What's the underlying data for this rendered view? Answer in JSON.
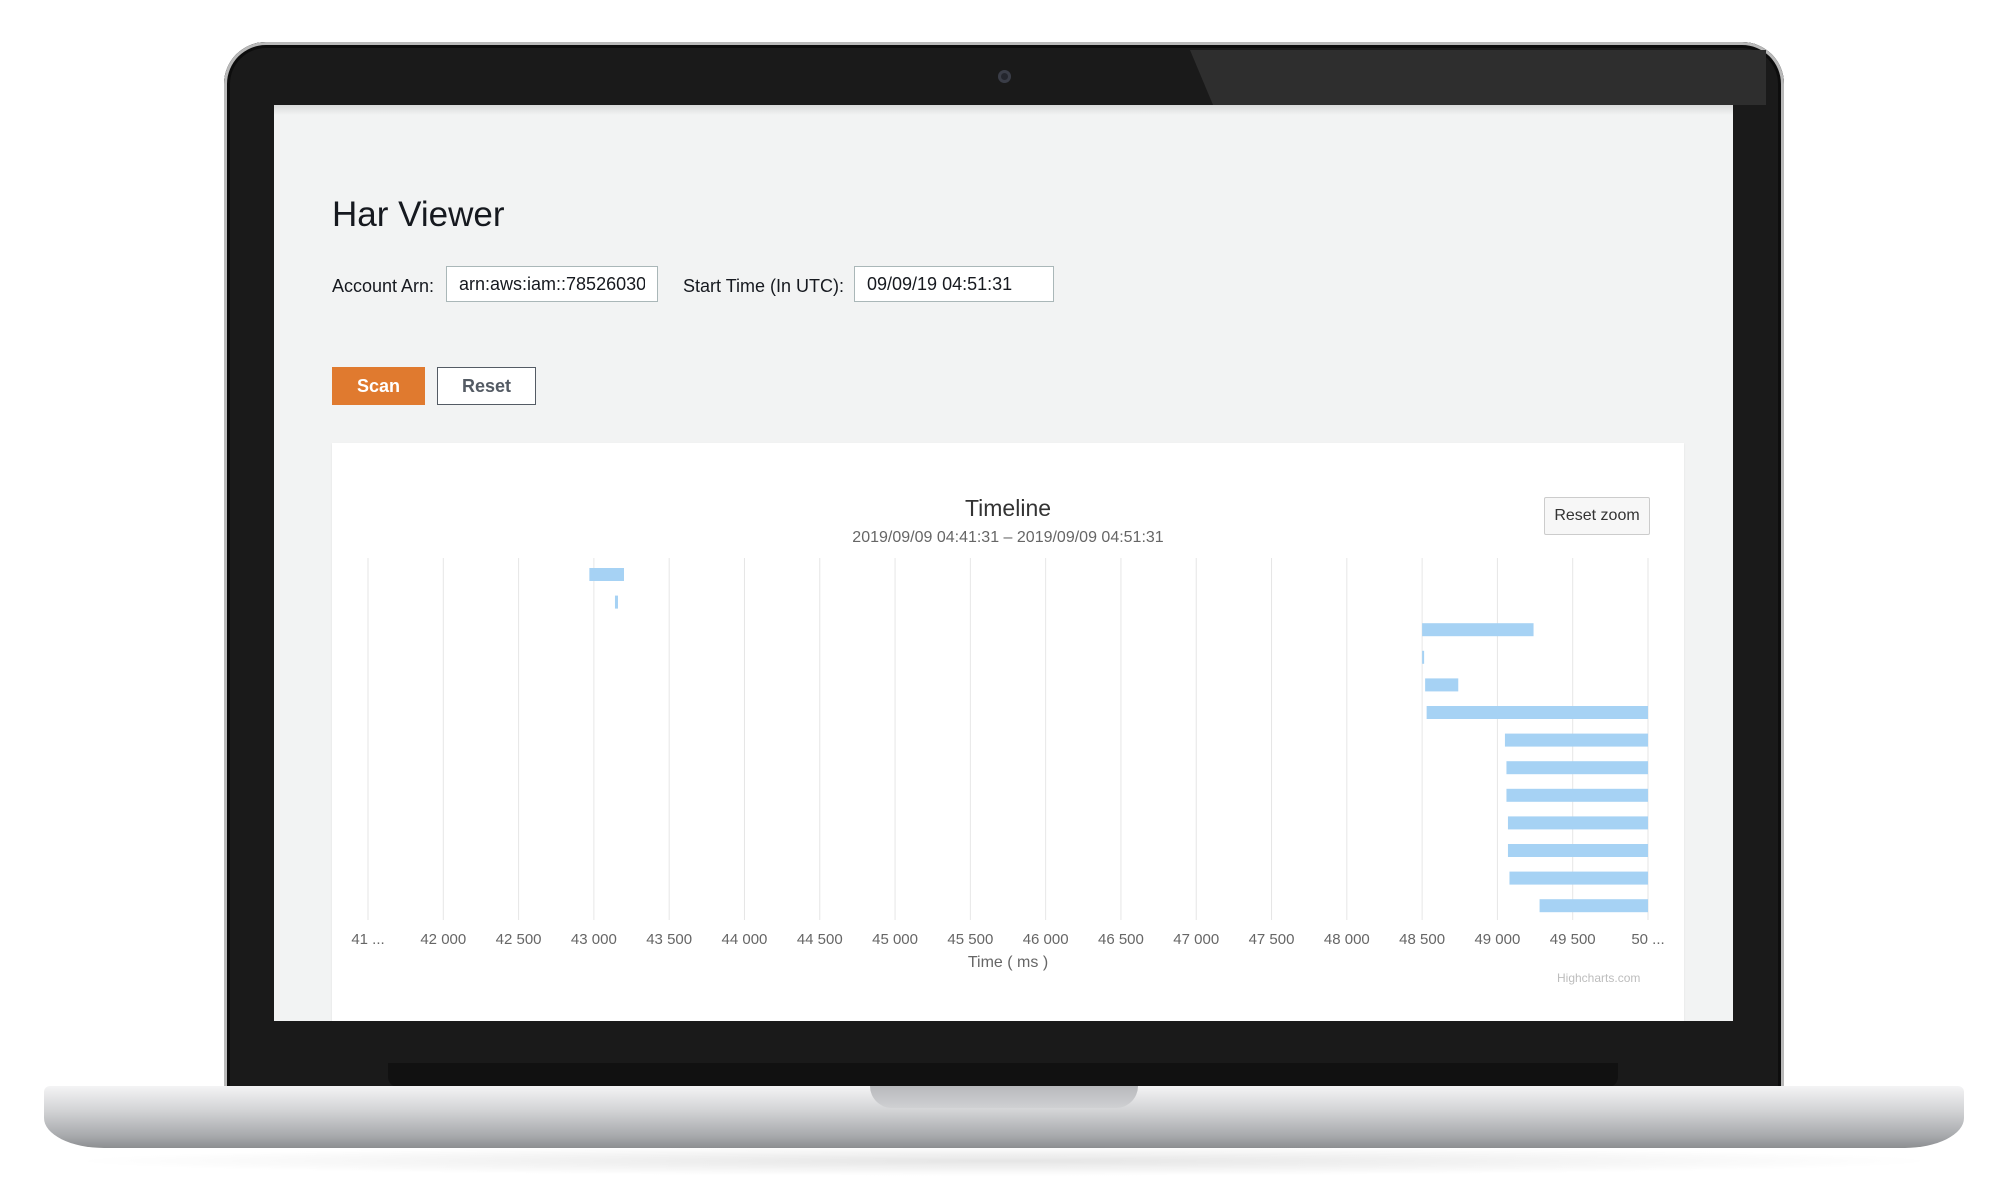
{
  "app": {
    "title": "Har Viewer",
    "form": {
      "account_label": "Account Arn:",
      "account_value": "arn:aws:iam::78526030",
      "start_label": "Start Time (In UTC):",
      "start_value": "09/09/19 04:51:31"
    },
    "buttons": {
      "scan": "Scan",
      "reset": "Reset",
      "reset_zoom": "Reset zoom"
    },
    "colors": {
      "accent": "#e07a2f",
      "bar": "#a6d2f4",
      "background": "#f2f3f3"
    }
  },
  "chart_data": {
    "type": "bar",
    "orientation": "horizontal",
    "title": "Timeline",
    "subtitle": "2019/09/09 04:41:31 – 2019/09/09 04:51:31",
    "xlabel": "Time ( ms )",
    "xlim": [
      41500,
      50000
    ],
    "tick_labels": [
      "41 ...",
      "42 000",
      "42 500",
      "43 000",
      "43 500",
      "44 000",
      "44 500",
      "45 000",
      "45 500",
      "46 000",
      "46 500",
      "47 000",
      "47 500",
      "48 000",
      "48 500",
      "49 000",
      "49 500",
      "50 ..."
    ],
    "grid": true,
    "credits": "Highcharts.com",
    "series": [
      {
        "ranges": [
          [
            42970,
            43200
          ],
          [
            43140,
            43160
          ],
          [
            48500,
            49240
          ],
          [
            48500,
            48510
          ],
          [
            48520,
            48740
          ],
          [
            48530,
            50000
          ],
          [
            49050,
            50000
          ],
          [
            49060,
            50000
          ],
          [
            49060,
            50000
          ],
          [
            49070,
            50000
          ],
          [
            49070,
            50000
          ],
          [
            49080,
            50000
          ],
          [
            49280,
            50000
          ]
        ]
      }
    ]
  }
}
